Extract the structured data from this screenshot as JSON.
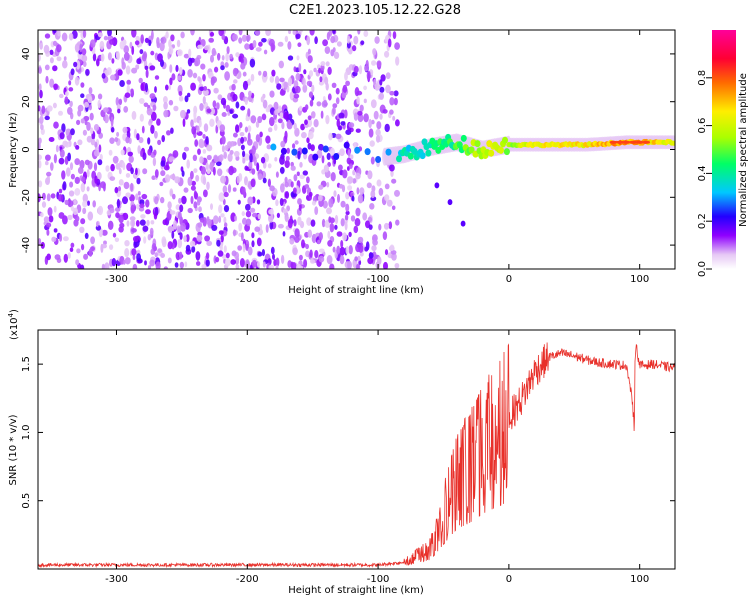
{
  "title": "C2E1.2023.105.12.22.G28",
  "chart_data": [
    {
      "type": "heatmap",
      "xlabel": "Height of straight line (km)",
      "ylabel": "Frequency (Hz)",
      "xlim": [
        -360,
        127
      ],
      "ylim": [
        -50,
        50
      ],
      "x_ticks": [
        -300,
        -200,
        -100,
        0,
        100
      ],
      "y_ticks": [
        -40,
        -20,
        0,
        20,
        40
      ],
      "colorbar": {
        "label": "Normalized spectral amplitude",
        "range": [
          0,
          1
        ],
        "ticks": [
          "0.0",
          "0.2",
          "0.4",
          "0.6",
          "0.8"
        ],
        "colormap": [
          "#ffffff",
          "#e6c8f5",
          "#8f00ff",
          "#2200ff",
          "#00c8ff",
          "#00ff66",
          "#aaff00",
          "#ffee00",
          "#ff6a00",
          "#ff0033",
          "#ff0099"
        ]
      },
      "noise_region_x": [
        -360,
        -85
      ],
      "signal_track": [
        {
          "x": -180,
          "f": 0,
          "a": 0.25
        },
        {
          "x": -120,
          "f": -1,
          "a": 0.25
        },
        {
          "x": -95,
          "f": -3,
          "a": 0.3
        },
        {
          "x": -80,
          "f": -2,
          "a": 0.35
        },
        {
          "x": -60,
          "f": 1,
          "a": 0.4
        },
        {
          "x": -40,
          "f": 3,
          "a": 0.45
        },
        {
          "x": -20,
          "f": 0,
          "a": 0.6
        },
        {
          "x": 0,
          "f": 2,
          "a": 0.55
        },
        {
          "x": 30,
          "f": 2,
          "a": 0.65
        },
        {
          "x": 60,
          "f": 2,
          "a": 0.65
        },
        {
          "x": 90,
          "f": 3,
          "a": 0.75
        },
        {
          "x": 127,
          "f": 3,
          "a": 0.6
        }
      ],
      "spur_track": [
        {
          "x": -55,
          "f": -15
        },
        {
          "x": -45,
          "f": -22
        },
        {
          "x": -35,
          "f": -31
        }
      ]
    },
    {
      "type": "line",
      "xlabel": "Height of straight line (km)",
      "ylabel": "SNR (10 * v/v)",
      "y_multiplier": "(x10",
      "y_multiplier_exp": "4",
      "y_multiplier_close": ")",
      "xlim": [
        -360,
        127
      ],
      "ylim": [
        0,
        17500
      ],
      "x_ticks": [
        -300,
        -200,
        -100,
        0,
        100
      ],
      "y_ticks": [
        5000,
        10000,
        15000
      ],
      "y_tick_labels": [
        "0.5",
        "1.0",
        "1.5"
      ],
      "color": "#e8302a",
      "series": [
        {
          "x": [
            -360,
            -300,
            -200,
            -100,
            -80,
            -60,
            -50,
            -40,
            -30,
            -20,
            -10,
            0,
            10,
            20,
            30,
            40,
            50,
            60,
            70,
            80,
            90,
            95,
            97,
            100,
            110,
            127
          ],
          "y": [
            300,
            300,
            300,
            300,
            500,
            1500,
            4000,
            6500,
            7500,
            9000,
            10000,
            11000,
            12500,
            14500,
            15500,
            15800,
            15600,
            15300,
            15100,
            15000,
            14900,
            12000,
            16500,
            14900,
            15000,
            14700
          ]
        }
      ]
    }
  ]
}
